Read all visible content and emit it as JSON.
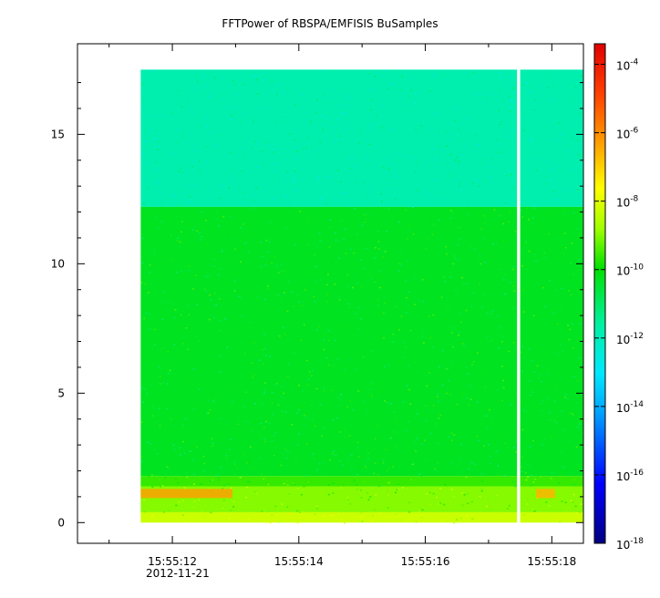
{
  "chart_data": {
    "type": "heatmap",
    "title": "FFTPower of RBSPA/EMFISIS  BuSamples",
    "xlabel": "",
    "ylabel": "",
    "x_ticks": [
      {
        "value": 12,
        "label": "15:55:12"
      },
      {
        "value": 14,
        "label": "15:55:14"
      },
      {
        "value": 16,
        "label": "15:55:16"
      },
      {
        "value": 18,
        "label": "15:55:18"
      }
    ],
    "x_minor_ticks": [
      11,
      13,
      15,
      17
    ],
    "x_date_label": "2012-11-21",
    "xlim": [
      10.5,
      18.5
    ],
    "ylim": [
      -0.8,
      18.5
    ],
    "y_ticks": [
      {
        "value": 0,
        "label": "0"
      },
      {
        "value": 5,
        "label": "5"
      },
      {
        "value": 10,
        "label": "10"
      },
      {
        "value": 15,
        "label": "15"
      }
    ],
    "colorbar": {
      "scale": "log",
      "range_exponents": [
        -18,
        -3.4
      ],
      "ticks": [
        {
          "base": "10",
          "exp": "-4",
          "value": -4
        },
        {
          "base": "10",
          "exp": "-6",
          "value": -6
        },
        {
          "base": "10",
          "exp": "-8",
          "value": -8
        },
        {
          "base": "10",
          "exp": "-10",
          "value": -10
        },
        {
          "base": "10",
          "exp": "-12",
          "value": -12
        },
        {
          "base": "10",
          "exp": "-14",
          "value": -14
        },
        {
          "base": "10",
          "exp": "-16",
          "value": -16
        },
        {
          "base": "10",
          "exp": "-18",
          "value": -18
        }
      ]
    },
    "data_extent": {
      "x_start": 11.5,
      "x_end": 18.5,
      "y_start": 0,
      "y_end": 17.5
    },
    "data_gap": {
      "x_start": 17.45,
      "x_end": 17.5
    },
    "bands": [
      {
        "y_from": 12.2,
        "y_to": 17.5,
        "log_power": -11.8
      },
      {
        "y_from": 1.8,
        "y_to": 12.2,
        "log_power": -10.3
      },
      {
        "y_from": 1.4,
        "y_to": 1.8,
        "log_power": -9.6
      },
      {
        "y_from": 0.4,
        "y_to": 1.4,
        "log_power": -9.0
      },
      {
        "y_from": 0.0,
        "y_to": 0.4,
        "log_power": -8.3
      }
    ],
    "features": [
      {
        "x_from": 11.5,
        "x_to": 12.95,
        "y_from": 0.95,
        "y_to": 1.3,
        "log_power": -6.3
      },
      {
        "x_from": 17.75,
        "x_to": 18.05,
        "y_from": 0.95,
        "y_to": 1.3,
        "log_power": -6.6
      }
    ]
  }
}
